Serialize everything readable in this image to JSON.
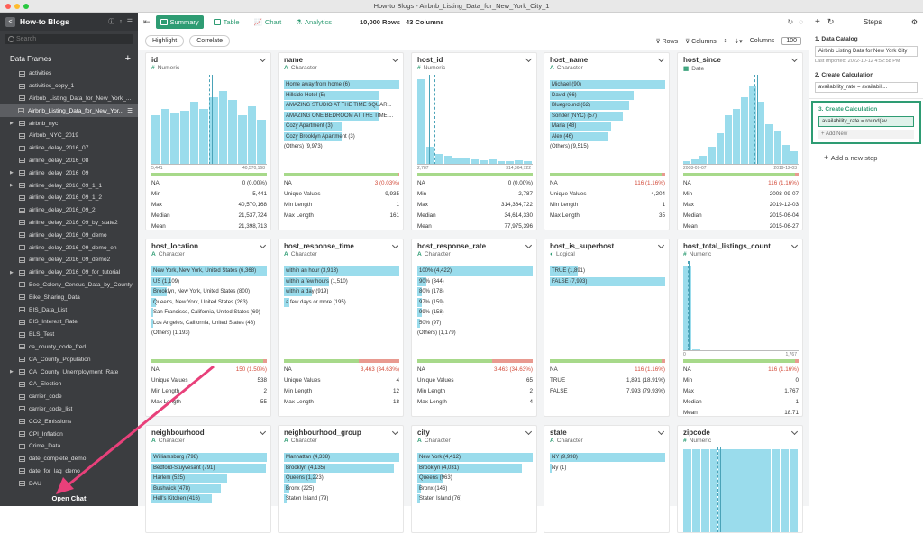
{
  "window_title": "How-to Blogs - Airbnb_Listing_Data_for_New_York_City_1",
  "sidebar": {
    "title": "How-to Blogs",
    "search_placeholder": "Search",
    "section": "Data Frames",
    "items": [
      {
        "label": "activities",
        "caret": ""
      },
      {
        "label": "activities_copy_1",
        "caret": ""
      },
      {
        "label": "Airbnb_Listing_Data_for_New_York_...",
        "caret": ""
      },
      {
        "label": "Airbnb_Listing_Data_for_New_Yor...",
        "caret": "",
        "selected": true
      },
      {
        "label": "airbnb_nyc",
        "caret": "▶"
      },
      {
        "label": "Airbnb_NYC_2019",
        "caret": ""
      },
      {
        "label": "airline_delay_2016_07",
        "caret": ""
      },
      {
        "label": "airline_delay_2016_08",
        "caret": ""
      },
      {
        "label": "airline_delay_2016_09",
        "caret": "▶"
      },
      {
        "label": "airline_delay_2016_09_1_1",
        "caret": "▶"
      },
      {
        "label": "airline_delay_2016_09_1_2",
        "caret": ""
      },
      {
        "label": "airline_delay_2016_09_2",
        "caret": ""
      },
      {
        "label": "airline_delay_2016_09_by_state2",
        "caret": ""
      },
      {
        "label": "airline_delay_2016_09_demo",
        "caret": ""
      },
      {
        "label": "airline_delay_2016_09_demo_en",
        "caret": ""
      },
      {
        "label": "airline_delay_2016_09_demo2",
        "caret": ""
      },
      {
        "label": "airline_delay_2016_09_for_tutorial",
        "caret": "▶"
      },
      {
        "label": "Bee_Colony_Census_Data_by_County",
        "caret": ""
      },
      {
        "label": "Bike_Sharing_Data",
        "caret": ""
      },
      {
        "label": "BIS_Data_List",
        "caret": ""
      },
      {
        "label": "BIS_Interest_Rate",
        "caret": ""
      },
      {
        "label": "BLS_Test",
        "caret": ""
      },
      {
        "label": "ca_county_code_fred",
        "caret": ""
      },
      {
        "label": "CA_County_Population",
        "caret": ""
      },
      {
        "label": "CA_County_Unemployment_Rate",
        "caret": "▶"
      },
      {
        "label": "CA_Election",
        "caret": ""
      },
      {
        "label": "carrier_code",
        "caret": ""
      },
      {
        "label": "carrier_code_list",
        "caret": ""
      },
      {
        "label": "CO2_Emissions",
        "caret": ""
      },
      {
        "label": "CPI_Inflation",
        "caret": ""
      },
      {
        "label": "Crime_Data",
        "caret": ""
      },
      {
        "label": "date_complete_demo",
        "caret": ""
      },
      {
        "label": "date_for_lag_demo",
        "caret": ""
      },
      {
        "label": "DAU",
        "caret": ""
      }
    ],
    "open_chat": "Open Chat"
  },
  "toolbar": {
    "tabs": [
      "Summary",
      "Table",
      "Chart",
      "Analytics"
    ],
    "rows_label": "10,000 Rows",
    "cols_label": "43 Columns",
    "highlight": "Highlight",
    "correlate": "Correlate",
    "rows_btn": "Rows",
    "columns_btn": "Columns",
    "columns_label": "Columns",
    "columns_count": "100"
  },
  "cards": [
    {
      "name": "id",
      "type": "Numeric",
      "kind": "hist",
      "bars": [
        0.55,
        0.62,
        0.58,
        0.6,
        0.7,
        0.62,
        0.75,
        0.82,
        0.72,
        0.55,
        0.65,
        0.5
      ],
      "lines": [
        0.5,
        0.52
      ],
      "range": [
        "5,441",
        "40,570,168"
      ],
      "stats": [
        [
          "NA",
          "0 (0.00%)"
        ],
        [
          "Min",
          "5,441"
        ],
        [
          "Max",
          "40,570,168"
        ],
        [
          "Median",
          "21,537,724"
        ],
        [
          "Mean",
          "21,398,713"
        ],
        [
          "Std Dev",
          "12,460,000"
        ]
      ],
      "missing": 0
    },
    {
      "name": "name",
      "type": "Character",
      "kind": "cat",
      "cats": [
        [
          "Home away from home (6)",
          1
        ],
        [
          "Hillside Hotel (5)",
          0.83
        ],
        [
          "AMAZING STUDIO AT THE TIME SQUAR...",
          0.83
        ],
        [
          "AMAZING ONE BEDROOM AT THE TIME ...",
          0.83
        ],
        [
          "Cozy Apartment (3)",
          0.5
        ],
        [
          "Cozy Brooklyn Apartment (3)",
          0.5
        ]
      ],
      "others": "(Others) (9,973)",
      "stats": [
        [
          "NA",
          "3 (0.03%)",
          "red"
        ],
        [
          "Unique Values",
          "9,935"
        ],
        [
          "Min Length",
          "1"
        ],
        [
          "Max Length",
          "161"
        ]
      ],
      "missing": 0.01
    },
    {
      "name": "host_id",
      "type": "Numeric",
      "kind": "hist",
      "bars": [
        0.95,
        0.2,
        0.12,
        0.1,
        0.08,
        0.08,
        0.06,
        0.05,
        0.06,
        0.04,
        0.04,
        0.05,
        0.04
      ],
      "lines": [
        0.15,
        0.1
      ],
      "range": [
        "2,787",
        "314,364,722"
      ],
      "stats": [
        [
          "NA",
          "0 (0.00%)"
        ],
        [
          "Min",
          "2,787"
        ],
        [
          "Max",
          "314,364,722"
        ],
        [
          "Median",
          "34,614,330"
        ],
        [
          "Mean",
          "77,975,396"
        ],
        [
          "Std Dev",
          "91,050,000"
        ]
      ],
      "missing": 0
    },
    {
      "name": "host_name",
      "type": "Character",
      "kind": "cat",
      "cats": [
        [
          "Michael (90)",
          1
        ],
        [
          "David (66)",
          0.73
        ],
        [
          "Blueground (62)",
          0.69
        ],
        [
          "Sonder (NYC) (57)",
          0.63
        ],
        [
          "Maria (48)",
          0.53
        ],
        [
          "Alex (46)",
          0.51
        ]
      ],
      "others": "(Others) (9,515)",
      "stats": [
        [
          "NA",
          "116 (1.16%)",
          "red"
        ],
        [
          "Unique Values",
          "4,204"
        ],
        [
          "Min Length",
          "1"
        ],
        [
          "Max Length",
          "35"
        ]
      ],
      "missing": 0.03
    },
    {
      "name": "host_since",
      "type": "Date",
      "kind": "hist",
      "bars": [
        0.04,
        0.06,
        0.1,
        0.2,
        0.35,
        0.55,
        0.62,
        0.75,
        0.88,
        0.7,
        0.45,
        0.38,
        0.22,
        0.15
      ],
      "lines": [
        0.62,
        0.64
      ],
      "range": [
        "2008-09-07",
        "2019-12-03"
      ],
      "stats": [
        [
          "NA",
          "116 (1.16%)",
          "red"
        ],
        [
          "Min",
          "2008-09-07"
        ],
        [
          "Max",
          "2019-12-03"
        ],
        [
          "Median",
          "2015-06-04"
        ],
        [
          "Mean",
          "2015-06-27"
        ]
      ],
      "missing": 0.03
    },
    {
      "name": "host_location",
      "type": "Character",
      "kind": "cat",
      "cats": [
        [
          "New York, New York, United States (6,368)",
          1
        ],
        [
          "US (1,109)",
          0.17
        ],
        [
          "Brooklyn, New York, United States (800)",
          0.13
        ],
        [
          "Queens, New York, United States (263)",
          0.04
        ],
        [
          "San Francisco, California, United States (69)",
          0.01
        ],
        [
          "Los Angeles, California, United States (48)",
          0.01
        ]
      ],
      "others": "(Others) (1,193)",
      "stats": [
        [
          "NA",
          "150 (1.50%)",
          "red"
        ],
        [
          "Unique Values",
          "538"
        ],
        [
          "Min Length",
          "2"
        ],
        [
          "Max Length",
          "55"
        ]
      ],
      "missing": 0.03
    },
    {
      "name": "host_response_time",
      "type": "Character",
      "kind": "cat",
      "cats": [
        [
          "within an hour (3,913)",
          1
        ],
        [
          "within a few hours (1,510)",
          0.39
        ],
        [
          "within a day (919)",
          0.24
        ],
        [
          "a few days or more (195)",
          0.05
        ]
      ],
      "others": "",
      "stats": [
        [
          "NA",
          "3,463 (34.63%)",
          "red"
        ],
        [
          "Unique Values",
          "4"
        ],
        [
          "Min Length",
          "12"
        ],
        [
          "Max Length",
          "18"
        ]
      ],
      "missing": 0.35
    },
    {
      "name": "host_response_rate",
      "type": "Character",
      "kind": "cat",
      "cats": [
        [
          "100% (4,422)",
          1
        ],
        [
          "90% (344)",
          0.08
        ],
        [
          "80% (178)",
          0.04
        ],
        [
          "97% (159)",
          0.04
        ],
        [
          "99% (158)",
          0.04
        ],
        [
          "50% (97)",
          0.02
        ]
      ],
      "others": "(Others) (1,179)",
      "stats": [
        [
          "NA",
          "3,463 (34.63%)",
          "red"
        ],
        [
          "Unique Values",
          "65"
        ],
        [
          "Min Length",
          "2"
        ],
        [
          "Max Length",
          "4"
        ]
      ],
      "missing": 0.35
    },
    {
      "name": "host_is_superhost",
      "type": "Logical",
      "kind": "cat",
      "cats": [
        [
          "TRUE (1,891)",
          0.24
        ],
        [
          "FALSE (7,993)",
          1
        ]
      ],
      "others": "",
      "stats": [
        [
          "NA",
          "116 (1.16%)",
          "red"
        ],
        [
          "TRUE",
          "1,891 (18.91%)"
        ],
        [
          "FALSE",
          "7,993 (79.93%)"
        ]
      ],
      "missing": 0.03
    },
    {
      "name": "host_total_listings_count",
      "type": "Numeric",
      "kind": "hist",
      "bars": [
        0.95,
        0.02,
        0.01,
        0.0,
        0.0,
        0.0,
        0.0,
        0.0,
        0.0,
        0.0,
        0.0,
        0.0,
        0.01
      ],
      "lines": [
        0.04,
        0.05
      ],
      "range": [
        "0",
        "1,767"
      ],
      "stats": [
        [
          "NA",
          "116 (1.16%)",
          "red"
        ],
        [
          "Min",
          "0"
        ],
        [
          "Max",
          "1,767"
        ],
        [
          "Median",
          "1"
        ],
        [
          "Mean",
          "18.71"
        ],
        [
          "Std Dev",
          "116.37"
        ]
      ],
      "missing": 0.03
    },
    {
      "name": "neighbourhood",
      "type": "Character",
      "kind": "cat",
      "cats": [
        [
          "Williamsburg (798)",
          1
        ],
        [
          "Bedford-Stuyvesant (791)",
          0.99
        ],
        [
          "Harlem (525)",
          0.66
        ],
        [
          "Bushwick (478)",
          0.6
        ],
        [
          "Hell's Kitchen (416)",
          0.52
        ]
      ],
      "others": ""
    },
    {
      "name": "neighbourhood_group",
      "type": "Character",
      "kind": "cat",
      "cats": [
        [
          "Manhattan (4,338)",
          1
        ],
        [
          "Brooklyn (4,135)",
          0.95
        ],
        [
          "Queens (1,223)",
          0.28
        ],
        [
          "Bronx (225)",
          0.05
        ],
        [
          "Staten Island (79)",
          0.02
        ]
      ],
      "others": ""
    },
    {
      "name": "city",
      "type": "Character",
      "kind": "cat",
      "cats": [
        [
          "New York (4,412)",
          1
        ],
        [
          "Brooklyn (4,031)",
          0.91
        ],
        [
          "Queens (963)",
          0.22
        ],
        [
          "Bronx (146)",
          0.03
        ],
        [
          "Staten Island (76)",
          0.02
        ]
      ],
      "others": ""
    },
    {
      "name": "state",
      "type": "Character",
      "kind": "cat",
      "cats": [
        [
          "NY (9,998)",
          1
        ],
        [
          "Ny (1)",
          0
        ]
      ],
      "others": ""
    },
    {
      "name": "zipcode",
      "type": "Numeric",
      "kind": "hist",
      "bars": [
        0.98,
        0.98,
        0.98,
        0.98,
        0.98,
        0.98,
        0.98,
        0.98,
        0.98,
        0.98,
        0.98,
        0.98,
        0.98
      ],
      "lines": [
        0.3,
        0.32
      ],
      "range": [
        "",
        ""
      ]
    }
  ],
  "steps": {
    "title": "Steps",
    "items": [
      {
        "header": "1. Data Catalog",
        "box": "Airbnb Listing Data for New York City",
        "sub": "Last Imported: 2022-10-12 4:52:58 PM",
        "active": false
      },
      {
        "header": "2. Create Calculation",
        "box": "availability_rate = availabili...",
        "active": false
      },
      {
        "header": "3. Create Calculation",
        "box": "availability_rate = round(av...",
        "add": "+ Add New",
        "active": true
      }
    ],
    "add_step": "Add a new step"
  },
  "colors": {
    "accent": "#2e9c73",
    "bar": "#9adcec",
    "ok": "#a7d98a",
    "missing": "#e89a90",
    "annotation": "#e8407a"
  }
}
